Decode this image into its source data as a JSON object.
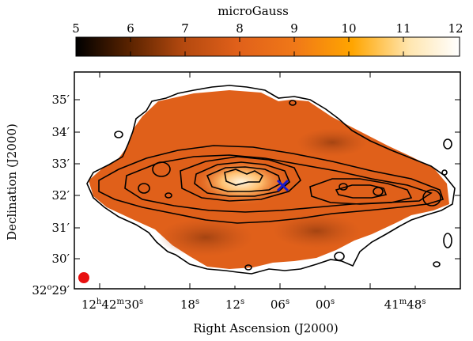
{
  "colorbar": {
    "title": "microGauss",
    "ticks": [
      "5",
      "6",
      "7",
      "8",
      "9",
      "10",
      "11",
      "12"
    ],
    "range": [
      5,
      12
    ],
    "colors": [
      "#000000",
      "#5a2300",
      "#b4490f",
      "#e0601a",
      "#f07818",
      "#ffa500",
      "#ffe6b0",
      "#ffffff"
    ]
  },
  "axes": {
    "xlabel": "Right Ascension (J2000)",
    "ylabel": "Declination (J2000)",
    "x_ticks": {
      "t1": {
        "h": "12",
        "hs": "h",
        "m": "42",
        "ms": "m",
        "s": "30",
        "ss": "s"
      },
      "t2": {
        "s": "18",
        "ss": "s"
      },
      "t3": {
        "s": "12",
        "ss": "s"
      },
      "t4": {
        "s": "06",
        "ss": "s"
      },
      "t5": {
        "s": "00",
        "ss": "s"
      },
      "t6": {
        "m": "41",
        "ms": "m",
        "s": "48",
        "ss": "s"
      }
    },
    "y_ticks": {
      "t0": {
        "d": "32",
        "ds": "o",
        "m": "29",
        "ms": "′"
      },
      "t1": {
        "m": "30",
        "ms": "′"
      },
      "t2": {
        "m": "31",
        "ms": "′"
      },
      "t3": {
        "m": "32",
        "ms": "′"
      },
      "t4": {
        "m": "33",
        "ms": "′"
      },
      "t5": {
        "m": "34",
        "ms": "′"
      },
      "t6": {
        "m": "35",
        "ms": "′"
      }
    }
  },
  "marks": {
    "nucleus_marker_color": "#1a1acc",
    "beam_color": "#e81010",
    "map_color": "#e0601a",
    "contour_color": "#000000"
  }
}
